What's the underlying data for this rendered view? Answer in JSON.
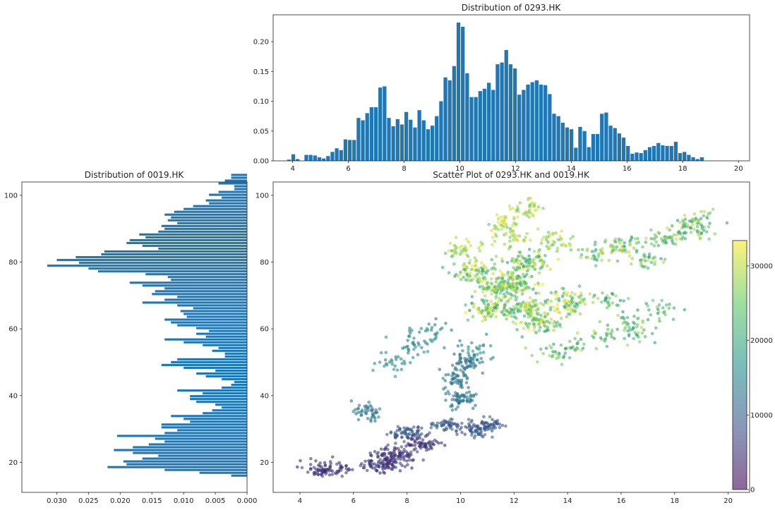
{
  "chart_data": [
    {
      "type": "bar",
      "title": "Distribution of 0293.HK",
      "xlim": [
        3.3,
        20.4
      ],
      "ylim": [
        0,
        0.245
      ],
      "xticks": [
        4,
        6,
        8,
        10,
        12,
        14,
        16,
        18,
        20
      ],
      "yticks": [
        0.0,
        0.05,
        0.1,
        0.15,
        0.2,
        0.25
      ],
      "ytick_labels": [
        "0.00",
        "0.05",
        "0.10",
        "0.15",
        "0.20",
        "0.25"
      ],
      "grid": false,
      "bin_start": 3.8,
      "bin_width": 0.156,
      "values": [
        0.002,
        0.011,
        0.003,
        0.0,
        0.01,
        0.01,
        0.009,
        0.006,
        0.004,
        0.008,
        0.015,
        0.021,
        0.018,
        0.036,
        0.035,
        0.035,
        0.072,
        0.068,
        0.08,
        0.09,
        0.09,
        0.123,
        0.125,
        0.072,
        0.058,
        0.07,
        0.061,
        0.082,
        0.069,
        0.056,
        0.085,
        0.068,
        0.053,
        0.059,
        0.075,
        0.1,
        0.14,
        0.135,
        0.159,
        0.232,
        0.225,
        0.147,
        0.107,
        0.107,
        0.117,
        0.121,
        0.131,
        0.119,
        0.162,
        0.165,
        0.186,
        0.162,
        0.155,
        0.111,
        0.119,
        0.128,
        0.132,
        0.135,
        0.128,
        0.127,
        0.112,
        0.079,
        0.075,
        0.064,
        0.056,
        0.053,
        0.022,
        0.057,
        0.05,
        0.023,
        0.045,
        0.045,
        0.079,
        0.081,
        0.059,
        0.055,
        0.046,
        0.039,
        0.025,
        0.012,
        0.014,
        0.013,
        0.018,
        0.023,
        0.025,
        0.03,
        0.026,
        0.025,
        0.025,
        0.032,
        0.013,
        0.015,
        0.01,
        0.006,
        0.003,
        0.006
      ]
    },
    {
      "type": "bar",
      "orientation": "horizontal",
      "title": "Distribution of 0019.HK",
      "xlim": [
        0.0355,
        0.0
      ],
      "ylim": [
        11,
        104
      ],
      "xticks": [
        0.03,
        0.025,
        0.02,
        0.015,
        0.01,
        0.005,
        0.0
      ],
      "xtick_labels": [
        "0.030",
        "0.025",
        "0.020",
        "0.015",
        "0.010",
        "0.005",
        "0.000"
      ],
      "yticks": [
        20,
        40,
        60,
        80,
        100
      ],
      "grid": false,
      "bin_start": 15.5,
      "bin_width": 0.85,
      "values": [
        0.0025,
        0.0075,
        0.013,
        0.022,
        0.019,
        0.0195,
        0.0165,
        0.014,
        0.018,
        0.021,
        0.018,
        0.0155,
        0.013,
        0.0145,
        0.0205,
        0.013,
        0.011,
        0.0135,
        0.0135,
        0.009,
        0.01,
        0.012,
        0.007,
        0.0055,
        0.004,
        0.005,
        0.008,
        0.009,
        0.009,
        0.007,
        0.011,
        0.004,
        0.0025,
        0.002,
        0.004,
        0.0065,
        0.008,
        0.005,
        0.01,
        0.0135,
        0.012,
        0.011,
        0.0035,
        0.0035,
        0.0055,
        0.0045,
        0.007,
        0.01,
        0.013,
        0.0065,
        0.008,
        0.006,
        0.008,
        0.011,
        0.012,
        0.013,
        0.0095,
        0.01,
        0.0105,
        0.0085,
        0.011,
        0.0165,
        0.013,
        0.011,
        0.015,
        0.0145,
        0.013,
        0.0165,
        0.0185,
        0.012,
        0.0125,
        0.016,
        0.0235,
        0.025,
        0.0315,
        0.0265,
        0.03,
        0.027,
        0.023,
        0.0225,
        0.014,
        0.0165,
        0.019,
        0.0185,
        0.016,
        0.017,
        0.014,
        0.013,
        0.0135,
        0.011,
        0.0125,
        0.012,
        0.013,
        0.0115,
        0.01,
        0.0085,
        0.006,
        0.0065,
        0.004,
        0.006,
        0.0045,
        0.002,
        0.002,
        0.0045,
        0.0035,
        0.0025,
        0.0025
      ]
    },
    {
      "type": "scatter",
      "title": "Scatter Plot of 0293.HK and 0019.HK",
      "xlim": [
        3.0,
        20.8
      ],
      "ylim": [
        11,
        104
      ],
      "xticks": [
        4,
        6,
        8,
        10,
        12,
        14,
        16,
        18,
        20
      ],
      "yticks": [
        20,
        40,
        60,
        80,
        100
      ],
      "grid": false,
      "alpha": 0.6,
      "marker": "circle",
      "color_map": "viridis",
      "colorbar": {
        "ticks": [
          0,
          10000,
          20000,
          30000
        ],
        "range": [
          0,
          33400
        ],
        "colors": [
          "#440154",
          "#3b528b",
          "#21918c",
          "#5ec962",
          "#fde725"
        ]
      },
      "clusters": [
        {
          "points": [
            [
              7.0,
              19.0
            ],
            [
              8.5,
              26.0
            ],
            [
              5.0,
              18.0
            ],
            [
              7.5,
              22.0
            ]
          ],
          "spread": [
            0.7,
            2.2
          ],
          "count": 320,
          "c": [
            3000,
            8000
          ]
        },
        {
          "points": [
            [
              9.5,
              31.0
            ],
            [
              10.5,
              29.0
            ],
            [
              8.0,
              29.0
            ],
            [
              11.0,
              31.0
            ]
          ],
          "spread": [
            0.6,
            1.8
          ],
          "count": 200,
          "c": [
            7000,
            11000
          ]
        },
        {
          "points": [
            [
              10.0,
              39.0
            ],
            [
              9.8,
              45.0
            ],
            [
              10.2,
              50.0
            ],
            [
              6.5,
              35.0
            ]
          ],
          "spread": [
            0.5,
            2.5
          ],
          "count": 200,
          "c": [
            11000,
            15000
          ]
        },
        {
          "points": [
            [
              8.5,
              56.0
            ],
            [
              7.5,
              50.0
            ],
            [
              9.0,
              60.0
            ],
            [
              10.5,
              53.0
            ]
          ],
          "spread": [
            0.7,
            3.0
          ],
          "count": 110,
          "c": [
            13000,
            18000
          ]
        },
        {
          "points": [
            [
              11.5,
              72.0
            ],
            [
              12.0,
              74.0
            ],
            [
              10.5,
              77.0
            ],
            [
              12.5,
              66.0
            ],
            [
              11.0,
              66.0
            ],
            [
              13.0,
              62.0
            ],
            [
              14.0,
              68.0
            ],
            [
              12.5,
              80.0
            ]
          ],
          "spread": [
            0.8,
            3.0
          ],
          "count": 650,
          "c": [
            18000,
            33000
          ]
        },
        {
          "points": [
            [
              11.5,
              91.0
            ],
            [
              12.5,
              96.0
            ],
            [
              10.0,
              84.0
            ],
            [
              12.0,
              87.0
            ],
            [
              13.5,
              87.0
            ]
          ],
          "spread": [
            0.6,
            2.8
          ],
          "count": 180,
          "c": [
            24000,
            33000
          ]
        },
        {
          "points": [
            [
              15.0,
              82.0
            ],
            [
              16.0,
              85.0
            ],
            [
              17.5,
              87.0
            ],
            [
              18.5,
              90.0
            ],
            [
              17.0,
              81.0
            ],
            [
              19.0,
              92.0
            ]
          ],
          "spread": [
            0.7,
            2.5
          ],
          "count": 230,
          "c": [
            18000,
            31000
          ]
        },
        {
          "points": [
            [
              15.5,
              58.0
            ],
            [
              14.5,
              55.0
            ],
            [
              16.5,
              59.0
            ],
            [
              13.5,
              53.0
            ],
            [
              16.5,
              63.0
            ],
            [
              17.5,
              66.0
            ],
            [
              15.5,
              69.0
            ]
          ],
          "spread": [
            0.7,
            2.5
          ],
          "count": 170,
          "c": [
            17000,
            30000
          ]
        }
      ]
    }
  ]
}
